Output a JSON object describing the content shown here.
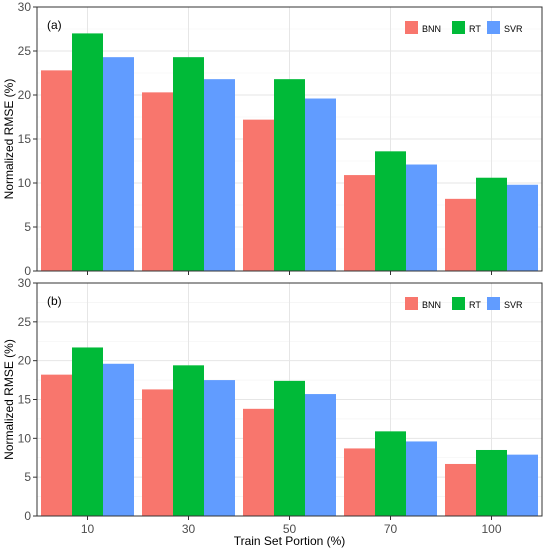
{
  "chart_data": [
    {
      "type": "bar",
      "panel_label": "(a)",
      "categories": [
        "10",
        "30",
        "50",
        "70",
        "100"
      ],
      "series": [
        {
          "name": "BNN",
          "color": "#F8766D",
          "values": [
            22.8,
            20.3,
            17.2,
            10.9,
            8.2
          ]
        },
        {
          "name": "RT",
          "color": "#00BA38",
          "values": [
            27.0,
            24.3,
            21.8,
            13.6,
            10.6
          ]
        },
        {
          "name": "SVR",
          "color": "#619CFF",
          "values": [
            24.3,
            21.8,
            19.6,
            12.1,
            9.8
          ]
        }
      ],
      "ylabel": "Normalized RMSE (%)",
      "xlabel": "",
      "ylim": [
        0,
        30
      ],
      "yticks": [
        0,
        5,
        10,
        15,
        20,
        25,
        30
      ],
      "grid": true,
      "legend_position": "top-right"
    },
    {
      "type": "bar",
      "panel_label": "(b)",
      "categories": [
        "10",
        "30",
        "50",
        "70",
        "100"
      ],
      "series": [
        {
          "name": "BNN",
          "color": "#F8766D",
          "values": [
            18.2,
            16.3,
            13.8,
            8.7,
            6.7
          ]
        },
        {
          "name": "RT",
          "color": "#00BA38",
          "values": [
            21.7,
            19.4,
            17.4,
            10.9,
            8.5
          ]
        },
        {
          "name": "SVR",
          "color": "#619CFF",
          "values": [
            19.6,
            17.5,
            15.7,
            9.6,
            7.9
          ]
        }
      ],
      "ylabel": "Normalized RMSE (%)",
      "xlabel": "Train Set Portion (%)",
      "ylim": [
        0,
        30
      ],
      "yticks": [
        0,
        5,
        10,
        15,
        20,
        25,
        30
      ],
      "grid": true,
      "legend_position": "top-right"
    }
  ]
}
